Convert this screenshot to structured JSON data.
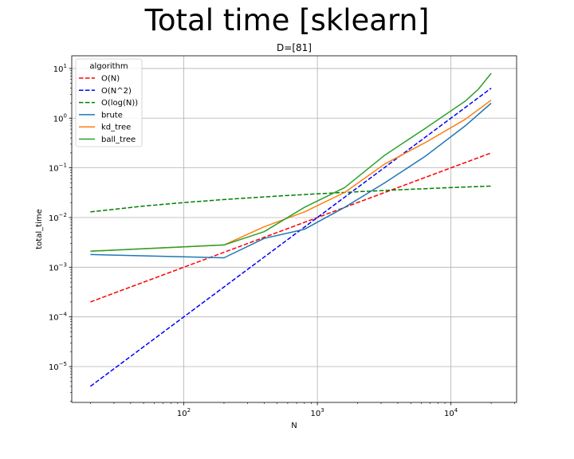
{
  "figure": {
    "suptitle": "Total time [sklearn]"
  },
  "chart_data": {
    "type": "line",
    "title": "D=[81]",
    "xlabel": "N",
    "ylabel": "total_time",
    "xscale": "log",
    "yscale": "log",
    "xlim": [
      14.5,
      31000
    ],
    "ylim": [
      1.9e-06,
      18
    ],
    "grid": true,
    "x_ticks": [
      {
        "value": 100,
        "base": "10",
        "exp": "2"
      },
      {
        "value": 1000,
        "base": "10",
        "exp": "3"
      },
      {
        "value": 10000,
        "base": "10",
        "exp": "4"
      }
    ],
    "y_ticks": [
      {
        "value": 1e-05,
        "base": "10",
        "exp": "−5"
      },
      {
        "value": 0.0001,
        "base": "10",
        "exp": "−4"
      },
      {
        "value": 0.001,
        "base": "10",
        "exp": "−3"
      },
      {
        "value": 0.01,
        "base": "10",
        "exp": "−2"
      },
      {
        "value": 0.1,
        "base": "10",
        "exp": "−1"
      },
      {
        "value": 1,
        "base": "10",
        "exp": "0"
      },
      {
        "value": 10,
        "base": "10",
        "exp": "1"
      }
    ],
    "legend": {
      "title": "algorithm",
      "placement": "top-left"
    },
    "series": [
      {
        "name": "O(N)",
        "color": "#ff0000",
        "dashed": true,
        "x": [
          20,
          200,
          2000,
          20000
        ],
        "y": [
          0.0002,
          0.002,
          0.02,
          0.2
        ]
      },
      {
        "name": "O(N^2)",
        "color": "#0000ff",
        "dashed": true,
        "x": [
          20,
          200,
          2000,
          20000
        ],
        "y": [
          4e-06,
          0.0004,
          0.04,
          4
        ]
      },
      {
        "name": "O(log(N))",
        "color": "#008000",
        "dashed": true,
        "x": [
          20,
          50,
          100,
          200,
          500,
          1000,
          2000,
          5000,
          10000,
          20000
        ],
        "y": [
          0.013,
          0.017,
          0.02,
          0.023,
          0.027,
          0.03,
          0.033,
          0.037,
          0.04,
          0.043
        ]
      },
      {
        "name": "brute",
        "color": "#1f77b4",
        "dashed": false,
        "x": [
          20,
          200,
          400,
          800,
          1600,
          3200,
          6400,
          12800,
          20000
        ],
        "y": [
          0.0018,
          0.00155,
          0.0038,
          0.0058,
          0.016,
          0.05,
          0.17,
          0.7,
          2.0
        ]
      },
      {
        "name": "kd_tree",
        "color": "#ff7f0e",
        "dashed": false,
        "x": [
          20,
          200,
          400,
          800,
          1600,
          3200,
          6400,
          12800,
          20000
        ],
        "y": [
          0.0021,
          0.0028,
          0.0065,
          0.013,
          0.032,
          0.12,
          0.32,
          0.95,
          2.3
        ]
      },
      {
        "name": "ball_tree",
        "color": "#2ca02c",
        "dashed": false,
        "x": [
          20,
          200,
          400,
          800,
          1600,
          3200,
          6400,
          12800,
          16000,
          20000
        ],
        "y": [
          0.0021,
          0.0028,
          0.0052,
          0.016,
          0.04,
          0.18,
          0.62,
          2.2,
          3.8,
          8.0
        ]
      }
    ]
  }
}
